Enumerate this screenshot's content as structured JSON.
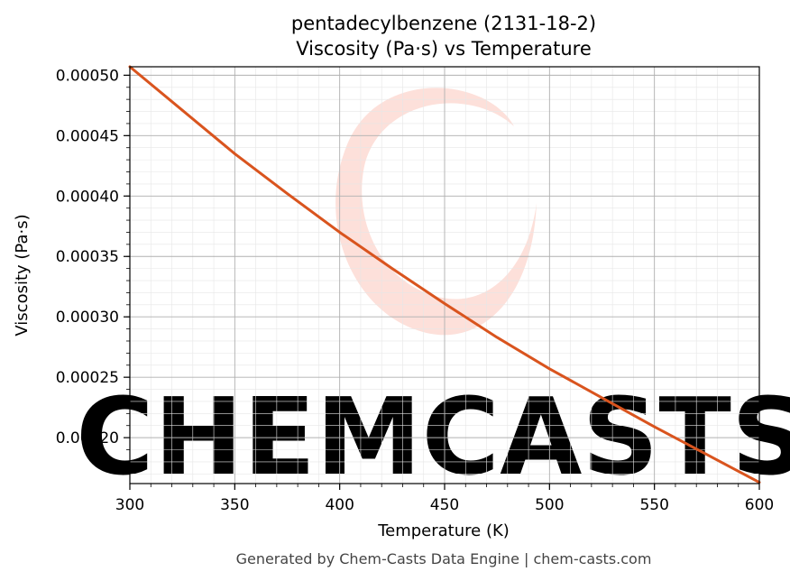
{
  "chart_data": {
    "type": "line",
    "title": "pentadecylbenzene (2131-18-2)",
    "subtitle": "Viscosity (Pa·s) vs Temperature",
    "xlabel": "Temperature (K)",
    "ylabel": "Viscosity (Pa·s)",
    "xlim": [
      300,
      600
    ],
    "ylim": [
      0.000162,
      0.000507
    ],
    "x_ticks": [
      "300",
      "350",
      "400",
      "450",
      "500",
      "550",
      "600"
    ],
    "y_ticks": [
      "0.00020",
      "0.00025",
      "0.00030",
      "0.00035",
      "0.00040",
      "0.00045",
      "0.00050"
    ],
    "grid": true,
    "line_color": "#d9541e",
    "series": [
      {
        "x": [
          300,
          325,
          350,
          375,
          400,
          425,
          450,
          475,
          500,
          525,
          550,
          575,
          600
        ],
        "values": [
          0.000507,
          0.000471,
          0.000435,
          0.000402,
          0.00037,
          0.00034,
          0.000311,
          0.000283,
          0.000257,
          0.000233,
          0.000209,
          0.000186,
          0.000163
        ]
      }
    ]
  },
  "watermark": {
    "text": "CHEMCASTS",
    "color": "#fde0da"
  },
  "footer": "Generated by Chem-Casts Data Engine | chem-casts.com"
}
